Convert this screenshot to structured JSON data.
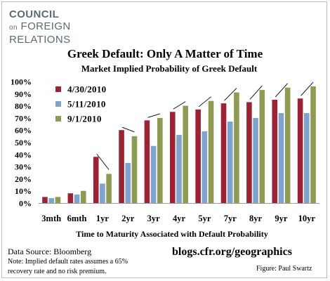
{
  "logo": {
    "line1": "COUNCIL",
    "line2": "FOREIGN",
    "line3": "RELATIONS",
    "small": "on"
  },
  "footer": {
    "source": "Data Source: Bloomberg",
    "note1": "Note: Implied default rates assumes a 65%",
    "note2": "recovery rate and no risk premium.",
    "url": "blogs.cfr.org/geographics",
    "credit": "Figure: Paul Swartz"
  },
  "chart_data": {
    "type": "bar",
    "title": "Greek Default: Only A Matter of Time",
    "subtitle": "Market Implied Probability of Greek Default",
    "xlabel": "Time to Maturity Associated with Default Probability",
    "ylabel": "",
    "ylim": [
      0,
      100
    ],
    "yticks": [
      "0%",
      "10%",
      "20%",
      "30%",
      "40%",
      "50%",
      "60%",
      "70%",
      "80%",
      "90%",
      "100%"
    ],
    "grid": false,
    "legend": "top-left",
    "categories": [
      "3mth",
      "6mth",
      "1yr",
      "2yr",
      "3yr",
      "4yr",
      "5yr",
      "7yr",
      "8yr",
      "9yr",
      "10yr"
    ],
    "series": [
      {
        "name": "4/30/2010",
        "color": "#9b2335",
        "values": [
          5,
          8,
          38,
          60,
          68,
          75,
          77,
          82,
          83,
          85,
          86
        ]
      },
      {
        "name": "5/11/2010",
        "color": "#7ea3cc",
        "values": [
          4,
          7,
          16,
          33,
          47,
          56,
          59,
          67,
          70,
          74,
          74
        ]
      },
      {
        "name": "9/1/2010",
        "color": "#8f9b52",
        "values": [
          5,
          10,
          24,
          55,
          70,
          80,
          84,
          91,
          93,
          95,
          96
        ]
      }
    ]
  }
}
